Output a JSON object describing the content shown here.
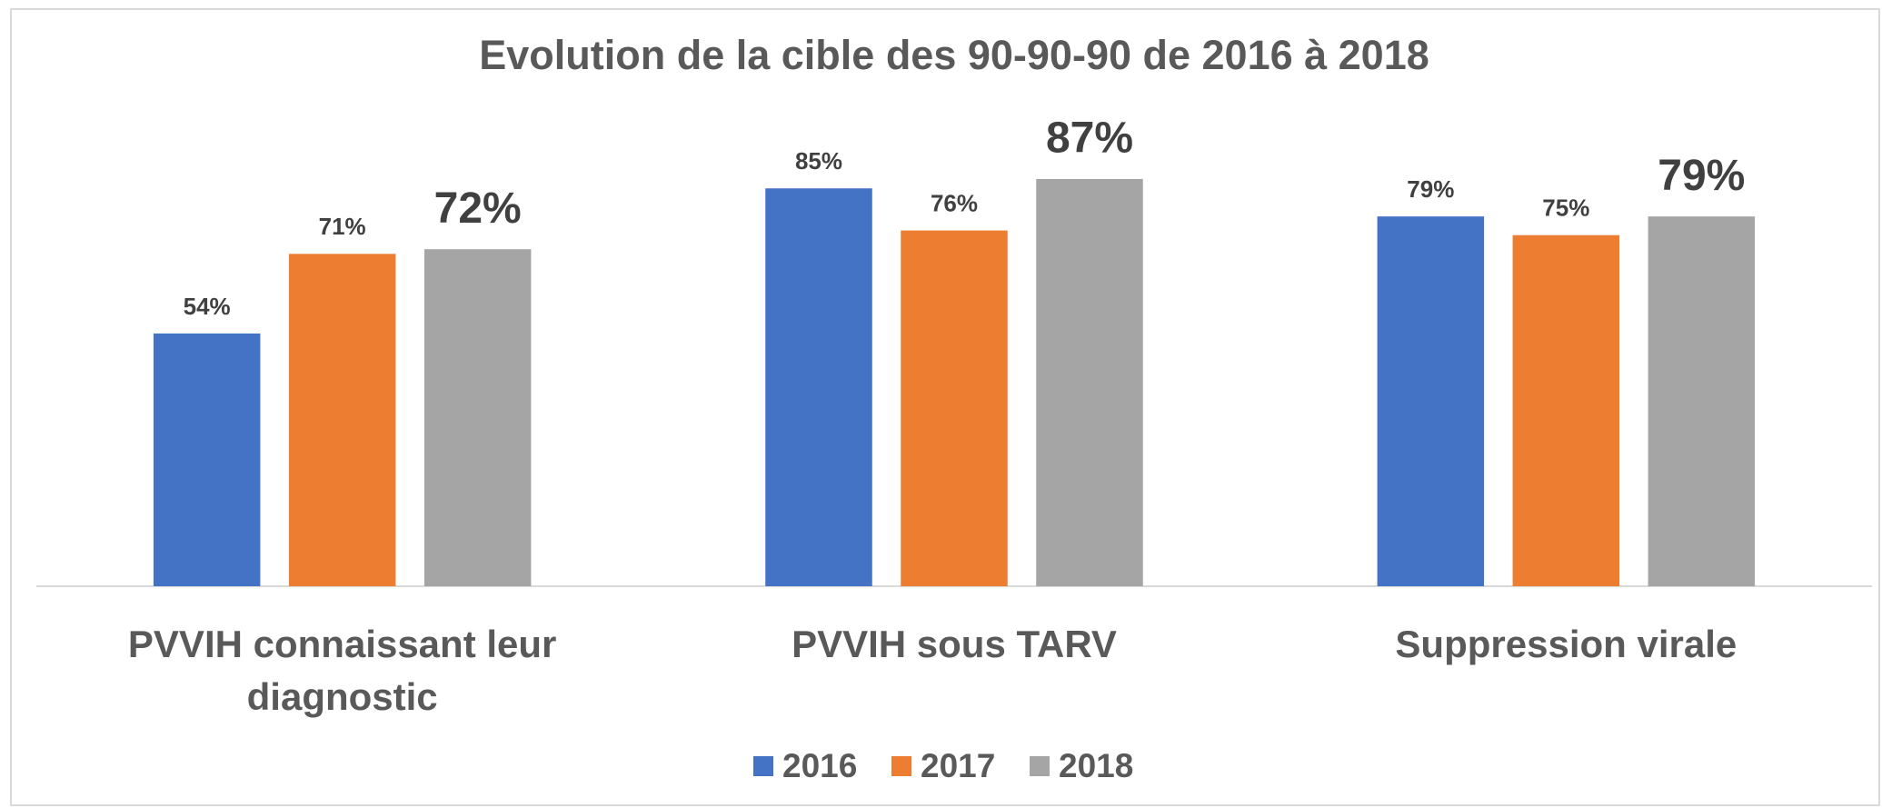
{
  "chart_data": {
    "type": "bar",
    "title": "Evolution de la cible des 90-90-90 de 2016 à 2018",
    "categories": [
      "PVVIH connaissant leur diagnostic",
      "PVVIH sous TARV",
      "Suppression virale"
    ],
    "series": [
      {
        "name": "2016",
        "color": "#4472c4",
        "values": [
          54,
          85,
          79
        ],
        "value_labels": [
          "54%",
          "85%",
          "79%"
        ]
      },
      {
        "name": "2017",
        "color": "#ed7d31",
        "values": [
          71,
          76,
          75
        ],
        "value_labels": [
          "71%",
          "76%",
          "75%"
        ]
      },
      {
        "name": "2018",
        "color": "#a5a5a5",
        "values": [
          72,
          87,
          79
        ],
        "value_labels": [
          "72%",
          "87%",
          "79%"
        ]
      }
    ],
    "legend": "bottom"
  }
}
